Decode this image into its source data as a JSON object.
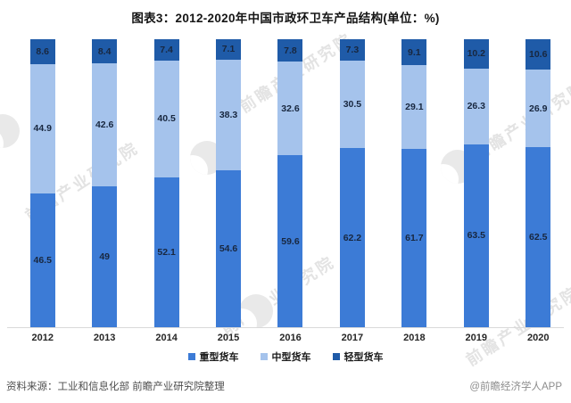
{
  "title": "图表3：2012-2020年中国市政环卫车产品结构(单位：%)",
  "chart_data": {
    "type": "bar",
    "stacked": true,
    "unit": "%",
    "title": "图表3：2012-2020年中国市政环卫车产品结构(单位：%)",
    "categories": [
      "2012",
      "2013",
      "2014",
      "2015",
      "2016",
      "2017",
      "2018",
      "2019",
      "2020"
    ],
    "series": [
      {
        "name": "重型货车",
        "color": "#3c7bd6",
        "values": [
          46.5,
          49,
          52.1,
          54.6,
          59.6,
          62.2,
          61.7,
          63.5,
          62.5
        ]
      },
      {
        "name": "中型货车",
        "color": "#a5c3ec",
        "values": [
          44.9,
          42.6,
          40.5,
          38.3,
          32.6,
          30.5,
          29.1,
          26.3,
          26.9
        ]
      },
      {
        "name": "轻型货车",
        "color": "#1f5ba8",
        "values": [
          8.6,
          8.4,
          7.4,
          7.1,
          7.8,
          7.3,
          9.1,
          10.2,
          10.6
        ]
      }
    ],
    "ylim": [
      0,
      100
    ],
    "grid": false,
    "legend_position": "bottom",
    "axis_line_color": "#d9d9d9"
  },
  "footer": {
    "source": "资料来源：工业和信息化部 前瞻产业研究院整理",
    "credit": "@前瞻经济学人APP"
  },
  "watermark": {
    "text": "前瞻产业研究院"
  }
}
